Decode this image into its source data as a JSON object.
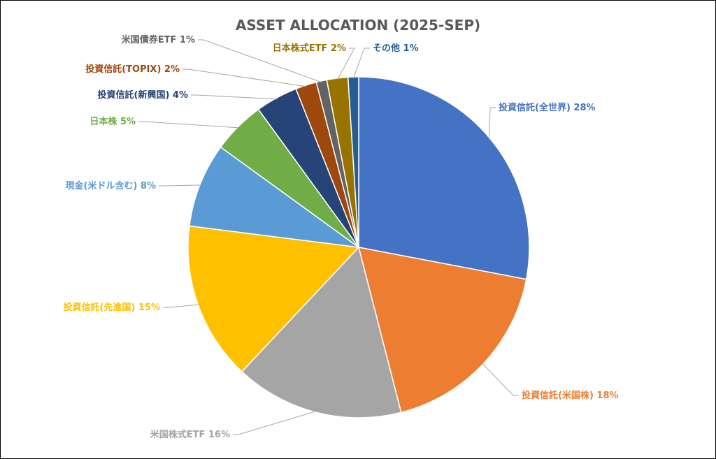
{
  "chart_data": {
    "type": "pie",
    "title": "ASSET ALLOCATION  (2025-SEP)",
    "series": [
      {
        "name": "投資信託(全世界)",
        "value": 28,
        "label": "投資信託(全世界) 28%",
        "color": "#4472C4"
      },
      {
        "name": "投資信託(米国株)",
        "value": 18,
        "label": "投資信託(米国株) 18%",
        "color": "#ED7D31"
      },
      {
        "name": "米国株式ETF",
        "value": 16,
        "label": "米国株式ETF 16%",
        "color": "#A5A5A5"
      },
      {
        "name": "投資信託(先進国)",
        "value": 15,
        "label": "投資信託(先進国) 15%",
        "color": "#FFC000"
      },
      {
        "name": "現金(米ドル含む)",
        "value": 8,
        "label": "現金(米ドル含む) 8%",
        "color": "#5B9BD5"
      },
      {
        "name": "日本株",
        "value": 5,
        "label": "日本株 5%",
        "color": "#70AD47"
      },
      {
        "name": "投資信託(新興国)",
        "value": 4,
        "label": "投資信託(新興国) 4%",
        "color": "#264478"
      },
      {
        "name": "投資信託(TOPIX)",
        "value": 2,
        "label": "投資信託(TOPIX) 2%",
        "color": "#9E480E"
      },
      {
        "name": "米国債券ETF",
        "value": 1,
        "label": "米国債券ETF 1%",
        "color": "#636363"
      },
      {
        "name": "日本株式ETF",
        "value": 2,
        "label": "日本株式ETF 2%",
        "color": "#997300"
      },
      {
        "name": "その他",
        "value": 1,
        "label": "その他 1%",
        "color": "#255E91"
      }
    ],
    "legend": "none",
    "data_labels": "outside-with-leader-lines"
  }
}
